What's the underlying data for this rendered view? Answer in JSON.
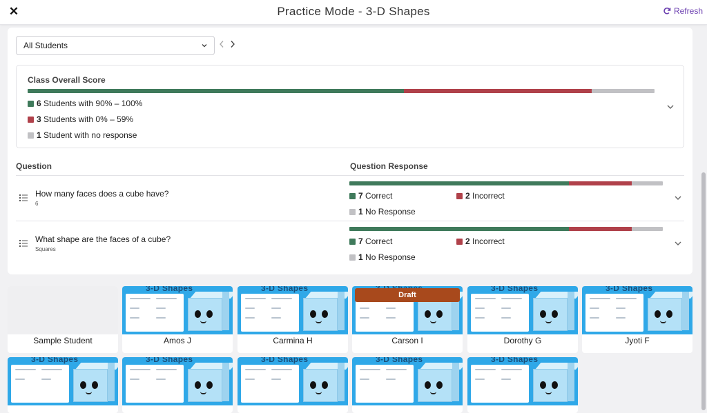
{
  "header": {
    "title": "Practice Mode - 3-D Shapes",
    "refresh_label": "Refresh"
  },
  "filter": {
    "selected": "All Students"
  },
  "overall": {
    "label": "Class Overall Score",
    "bar": {
      "high": 6,
      "low": 3,
      "none": 1
    },
    "legend": [
      {
        "count": "6",
        "text": " Students with 90% – 100%",
        "color": "#3f7a5b"
      },
      {
        "count": "3",
        "text": " Students with 0% – 59%",
        "color": "#b0414a"
      },
      {
        "count": "1",
        "text": " Student with no response",
        "color": "#c1c1c4"
      }
    ]
  },
  "questions_table": {
    "col_question": "Question",
    "col_response": "Question Response",
    "rows": [
      {
        "title": "How many faces does a cube have?",
        "answer": "6",
        "correct_count": "7",
        "correct_label": " Correct",
        "incorrect_count": "2",
        "incorrect_label": " Incorrect",
        "none_count": "1",
        "none_label": " No Response",
        "bar": {
          "correct": 7,
          "incorrect": 2,
          "none": 1
        }
      },
      {
        "title": "What shape are the faces of a cube?",
        "answer": "Squares",
        "correct_count": "7",
        "correct_label": " Correct",
        "incorrect_count": "2",
        "incorrect_label": " Incorrect",
        "none_count": "1",
        "none_label": " No Response",
        "bar": {
          "correct": 7,
          "incorrect": 2,
          "none": 1
        }
      }
    ]
  },
  "students": {
    "thumb_header": "3-D Shapes",
    "draft_label": "Draft",
    "names": [
      "Sample Student",
      "Amos J",
      "Carmina H",
      "Carson I",
      "Dorothy G",
      "Jyoti F"
    ]
  },
  "colors": {
    "correct": "#3f7a5b",
    "incorrect": "#b0414a",
    "no_response": "#c1c1c4",
    "accent": "#6b3fb0",
    "thumb_bg": "#2fa8e8",
    "draft_bg": "#a8491c"
  },
  "icons": {
    "close": "close-icon",
    "refresh": "refresh-icon",
    "dropdown": "chevron-down-icon",
    "prev": "chevron-left-icon",
    "next": "chevron-right-icon",
    "question": "list-icon"
  }
}
